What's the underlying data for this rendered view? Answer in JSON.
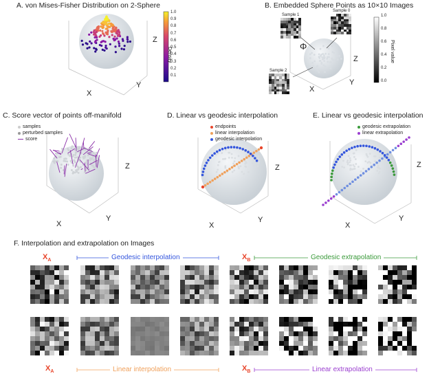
{
  "panels": {
    "a": {
      "title": "A. von Mises-Fisher Distribution on 2-Sphere",
      "colorbar_label": "Density",
      "ticks": [
        "1.0",
        "0.9",
        "0.8",
        "0.7",
        "0.6",
        "0.5",
        "0.4",
        "0.3",
        "0.2",
        "0.1"
      ],
      "axes": {
        "x": "X",
        "y": "Y",
        "z": "Z"
      }
    },
    "b": {
      "title": "B. Embedded Sphere Points as 10×10 Images",
      "colorbar_label": "Pixel value",
      "ticks": [
        "1.0",
        "0.8",
        "0.6",
        "0.4",
        "0.2",
        "0.0"
      ],
      "samples": [
        "Sample 1",
        "Sample 0",
        "Sample 2"
      ],
      "phi": "Φ",
      "axes": {
        "x": "X",
        "y": "Y",
        "z": "Z"
      }
    },
    "c": {
      "title": "C. Score vector of points off-manifold",
      "legend": [
        "samples",
        "perturbed samples",
        "score"
      ],
      "axes": {
        "x": "X",
        "y": "Y",
        "z": "Z"
      }
    },
    "d": {
      "title": "D. Linear vs geodesic interpolation",
      "legend": [
        "endpoints",
        "linear interpolation",
        "geodesic interpolation"
      ],
      "axes": {
        "x": "X",
        "y": "Y",
        "z": "Z"
      }
    },
    "e": {
      "title": "E. Linear vs geodesic interpolation",
      "legend": [
        "geodesic extrapolation",
        "linear extrapolation"
      ],
      "axes": {
        "x": "X",
        "y": "Y",
        "z": "Z"
      }
    },
    "f": {
      "title": "F. Interpolation and extrapolation on Images",
      "xa": "X",
      "xa_sub": "A",
      "xb": "X",
      "xb_sub": "B",
      "geo_interp": "Geodesic interpolation",
      "geo_extrap": "Geodesic extrapolation",
      "lin_interp": "Linear interpolation",
      "lin_extrap": "Linear extrapolation"
    }
  },
  "colors": {
    "geodesic": "#3355dd",
    "linear": "#f0a05a",
    "endpoint": "#e8452b",
    "geo_extrap": "#3a9a3a",
    "lin_extrap": "#9b3fd0",
    "score": "#8a2fa8"
  }
}
